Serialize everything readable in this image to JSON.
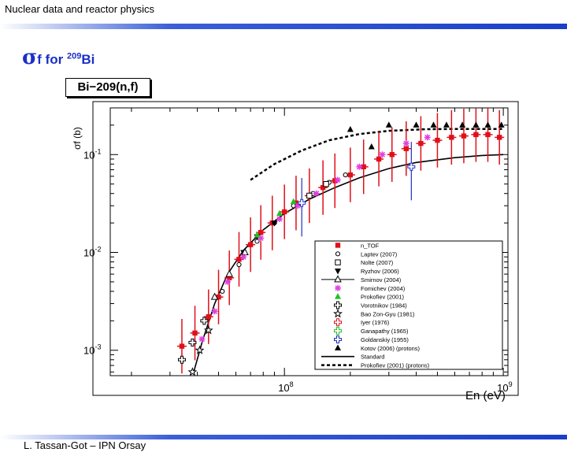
{
  "header": {
    "title": "Nuclear data and reactor physics"
  },
  "slide": {
    "sigma": "σ",
    "title_text": "f  for ",
    "mass_number": "209",
    "element": "Bi"
  },
  "plot": {
    "label": "Bi−209(n,f)"
  },
  "footer": {
    "text": "L. Tassan-Got – IPN Orsay"
  },
  "chart_data": {
    "type": "scatter",
    "xlabel": "En (eV)",
    "ylabel": "σf (b)",
    "xscale": "log",
    "yscale": "log",
    "xlim": [
      16000000.0,
      1050000000.0
    ],
    "ylim": [
      0.00055,
      0.3
    ],
    "xticks": [
      {
        "value": 100000000.0,
        "label": "10^8"
      },
      {
        "value": 1000000000.0,
        "label": "10^9"
      }
    ],
    "yticks": [
      {
        "value": 0.1,
        "label": "10^-1"
      },
      {
        "value": 0.01,
        "label": "10^-2"
      },
      {
        "value": 0.001,
        "label": "10^-3"
      }
    ],
    "legend_position": "bottom-right",
    "series": [
      {
        "name": "n_TOF",
        "marker": "square",
        "color": "#e0101a",
        "points": [
          [
            34000000.0,
            0.0011
          ],
          [
            39000000.0,
            0.0015
          ],
          [
            45000000.0,
            0.0022
          ],
          [
            50000000.0,
            0.0035
          ],
          [
            56000000.0,
            0.0055
          ],
          [
            62000000.0,
            0.0085
          ],
          [
            70000000.0,
            0.012
          ],
          [
            78000000.0,
            0.016
          ],
          [
            88000000.0,
            0.02
          ],
          [
            100000000.0,
            0.026
          ],
          [
            113000000.0,
            0.032
          ],
          [
            130000000.0,
            0.038
          ],
          [
            150000000.0,
            0.046
          ],
          [
            170000000.0,
            0.054
          ],
          [
            200000000.0,
            0.062
          ],
          [
            230000000.0,
            0.075
          ],
          [
            270000000.0,
            0.09
          ],
          [
            310000000.0,
            0.1
          ],
          [
            360000000.0,
            0.115
          ],
          [
            420000000.0,
            0.13
          ],
          [
            500000000.0,
            0.14
          ],
          [
            580000000.0,
            0.15
          ],
          [
            660000000.0,
            0.155
          ],
          [
            750000000.0,
            0.16
          ],
          [
            850000000.0,
            0.16
          ],
          [
            960000000.0,
            0.15
          ]
        ]
      },
      {
        "name": "Laptev (2007)",
        "marker": "circle",
        "color": "#000000",
        "points": [
          [
            52000000.0,
            0.004
          ],
          [
            62000000.0,
            0.0075
          ],
          [
            75000000.0,
            0.013
          ],
          [
            90000000.0,
            0.02
          ],
          [
            110000000.0,
            0.03
          ],
          [
            135000000.0,
            0.04
          ],
          [
            160000000.0,
            0.052
          ],
          [
            190000000.0,
            0.062
          ]
        ]
      },
      {
        "name": "Nolte (2007)",
        "marker": "square-open",
        "color": "#000000",
        "points": [
          [
            130000000.0,
            0.038
          ],
          [
            155000000.0,
            0.05
          ]
        ]
      },
      {
        "name": "Ryzhov (2006)",
        "marker": "triangle-down",
        "color": "#000000",
        "points": [
          [
            65000000.0,
            0.01
          ],
          [
            75000000.0,
            0.0145
          ],
          [
            90000000.0,
            0.02
          ]
        ]
      },
      {
        "name": "Smirnov (2004)",
        "marker": "triangle-open",
        "color": "#000000",
        "points": [
          [
            48000000.0,
            0.0035
          ],
          [
            56000000.0,
            0.006
          ],
          [
            66000000.0,
            0.01
          ]
        ]
      },
      {
        "name": "Fomichev (2004)",
        "marker": "asterisk",
        "color": "#e040e0",
        "points": [
          [
            42000000.0,
            0.0013
          ],
          [
            48000000.0,
            0.0025
          ],
          [
            55000000.0,
            0.005
          ],
          [
            65000000.0,
            0.009
          ],
          [
            78000000.0,
            0.014
          ],
          [
            95000000.0,
            0.022
          ],
          [
            115000000.0,
            0.03
          ],
          [
            140000000.0,
            0.04
          ],
          [
            175000000.0,
            0.055
          ],
          [
            220000000.0,
            0.075
          ],
          [
            280000000.0,
            0.1
          ],
          [
            360000000.0,
            0.13
          ],
          [
            450000000.0,
            0.15
          ]
        ]
      },
      {
        "name": "Prokofiev (2001)",
        "marker": "triangle",
        "color": "#22c022",
        "points": [
          [
            75000000.0,
            0.015
          ],
          [
            95000000.0,
            0.025
          ],
          [
            110000000.0,
            0.033
          ]
        ]
      },
      {
        "name": "Vorotnikov (1984)",
        "marker": "cross-open",
        "color": "#000000",
        "points": [
          [
            34000000.0,
            0.0008
          ],
          [
            38000000.0,
            0.0012
          ],
          [
            43000000.0,
            0.002
          ]
        ]
      },
      {
        "name": "Bao Zon-Gyu (1981)",
        "marker": "star-open",
        "color": "#000000",
        "points": [
          [
            38000000.0,
            0.0006
          ],
          [
            41000000.0,
            0.001
          ],
          [
            45000000.0,
            0.0016
          ]
        ]
      },
      {
        "name": "Iyer (1976)",
        "marker": "cross-open",
        "color": "#e0101a",
        "points": []
      },
      {
        "name": "Ganapathy (1965)",
        "marker": "cross-open",
        "color": "#22c022",
        "points": []
      },
      {
        "name": "Goldanskiy (1955)",
        "marker": "cross-open",
        "color": "#2030c0",
        "points": [
          [
            120000000.0,
            0.032
          ],
          [
            380000000.0,
            0.075
          ]
        ]
      },
      {
        "name": "Kotov (2006) (protons)",
        "marker": "triangle",
        "color": "#000000",
        "points": [
          [
            200000000.0,
            0.18
          ],
          [
            250000000.0,
            0.12
          ],
          [
            300000000.0,
            0.2
          ],
          [
            400000000.0,
            0.2
          ],
          [
            480000000.0,
            0.2
          ],
          [
            550000000.0,
            0.2
          ],
          [
            650000000.0,
            0.2
          ],
          [
            750000000.0,
            0.2
          ],
          [
            850000000.0,
            0.2
          ],
          [
            980000000.0,
            0.2
          ]
        ]
      },
      {
        "name": "Standard",
        "line": "solid",
        "color": "#000000",
        "points": [
          [
            38500000.0,
            0.0006
          ],
          [
            42000000.0,
            0.0012
          ],
          [
            48000000.0,
            0.003
          ],
          [
            55000000.0,
            0.006
          ],
          [
            65000000.0,
            0.0105
          ],
          [
            80000000.0,
            0.017
          ],
          [
            100000000.0,
            0.025
          ],
          [
            130000000.0,
            0.035
          ],
          [
            170000000.0,
            0.046
          ],
          [
            220000000.0,
            0.058
          ],
          [
            300000000.0,
            0.072
          ],
          [
            400000000.0,
            0.083
          ],
          [
            600000000.0,
            0.093
          ],
          [
            800000000.0,
            0.098
          ],
          [
            1000000000.0,
            0.1
          ]
        ]
      },
      {
        "name": "Prokofiev (2001) (protons)",
        "line": "dashed",
        "color": "#000000",
        "points": [
          [
            70000000.0,
            0.055
          ],
          [
            90000000.0,
            0.08
          ],
          [
            120000000.0,
            0.11
          ],
          [
            160000000.0,
            0.14
          ],
          [
            220000000.0,
            0.162
          ],
          [
            300000000.0,
            0.175
          ],
          [
            450000000.0,
            0.182
          ],
          [
            650000000.0,
            0.183
          ],
          [
            1000000000.0,
            0.183
          ]
        ]
      }
    ]
  }
}
